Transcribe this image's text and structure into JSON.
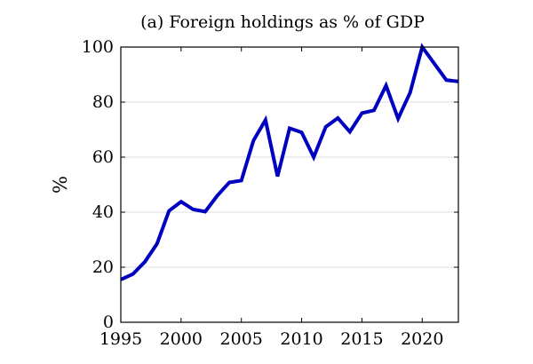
{
  "chart_data": {
    "type": "line",
    "title": "(a) Foreign holdings as % of GDP",
    "xlabel": "",
    "ylabel": "%",
    "xlim": [
      1995,
      2023
    ],
    "ylim": [
      0,
      100
    ],
    "xticks": [
      1995,
      2000,
      2005,
      2010,
      2015,
      2020
    ],
    "yticks": [
      0,
      20,
      40,
      60,
      80,
      100
    ],
    "grid": "horizontal",
    "legend": "none",
    "series": [
      {
        "color": "#0000c0",
        "x": [
          1995,
          1996,
          1997,
          1998,
          1999,
          2000,
          2001,
          2002,
          2003,
          2004,
          2005,
          2006,
          2007,
          2008,
          2009,
          2010,
          2011,
          2012,
          2013,
          2014,
          2015,
          2016,
          2017,
          2018,
          2019,
          2020,
          2021,
          2022,
          2023
        ],
        "y": [
          15.5,
          17.5,
          22,
          28.5,
          40.5,
          43.8,
          41,
          40.2,
          46,
          50.8,
          51.5,
          66,
          73.5,
          53,
          70.5,
          69,
          60,
          71,
          74.2,
          69.2,
          76,
          77,
          86,
          74,
          83.5,
          100,
          94,
          88,
          87.5
        ]
      }
    ]
  }
}
